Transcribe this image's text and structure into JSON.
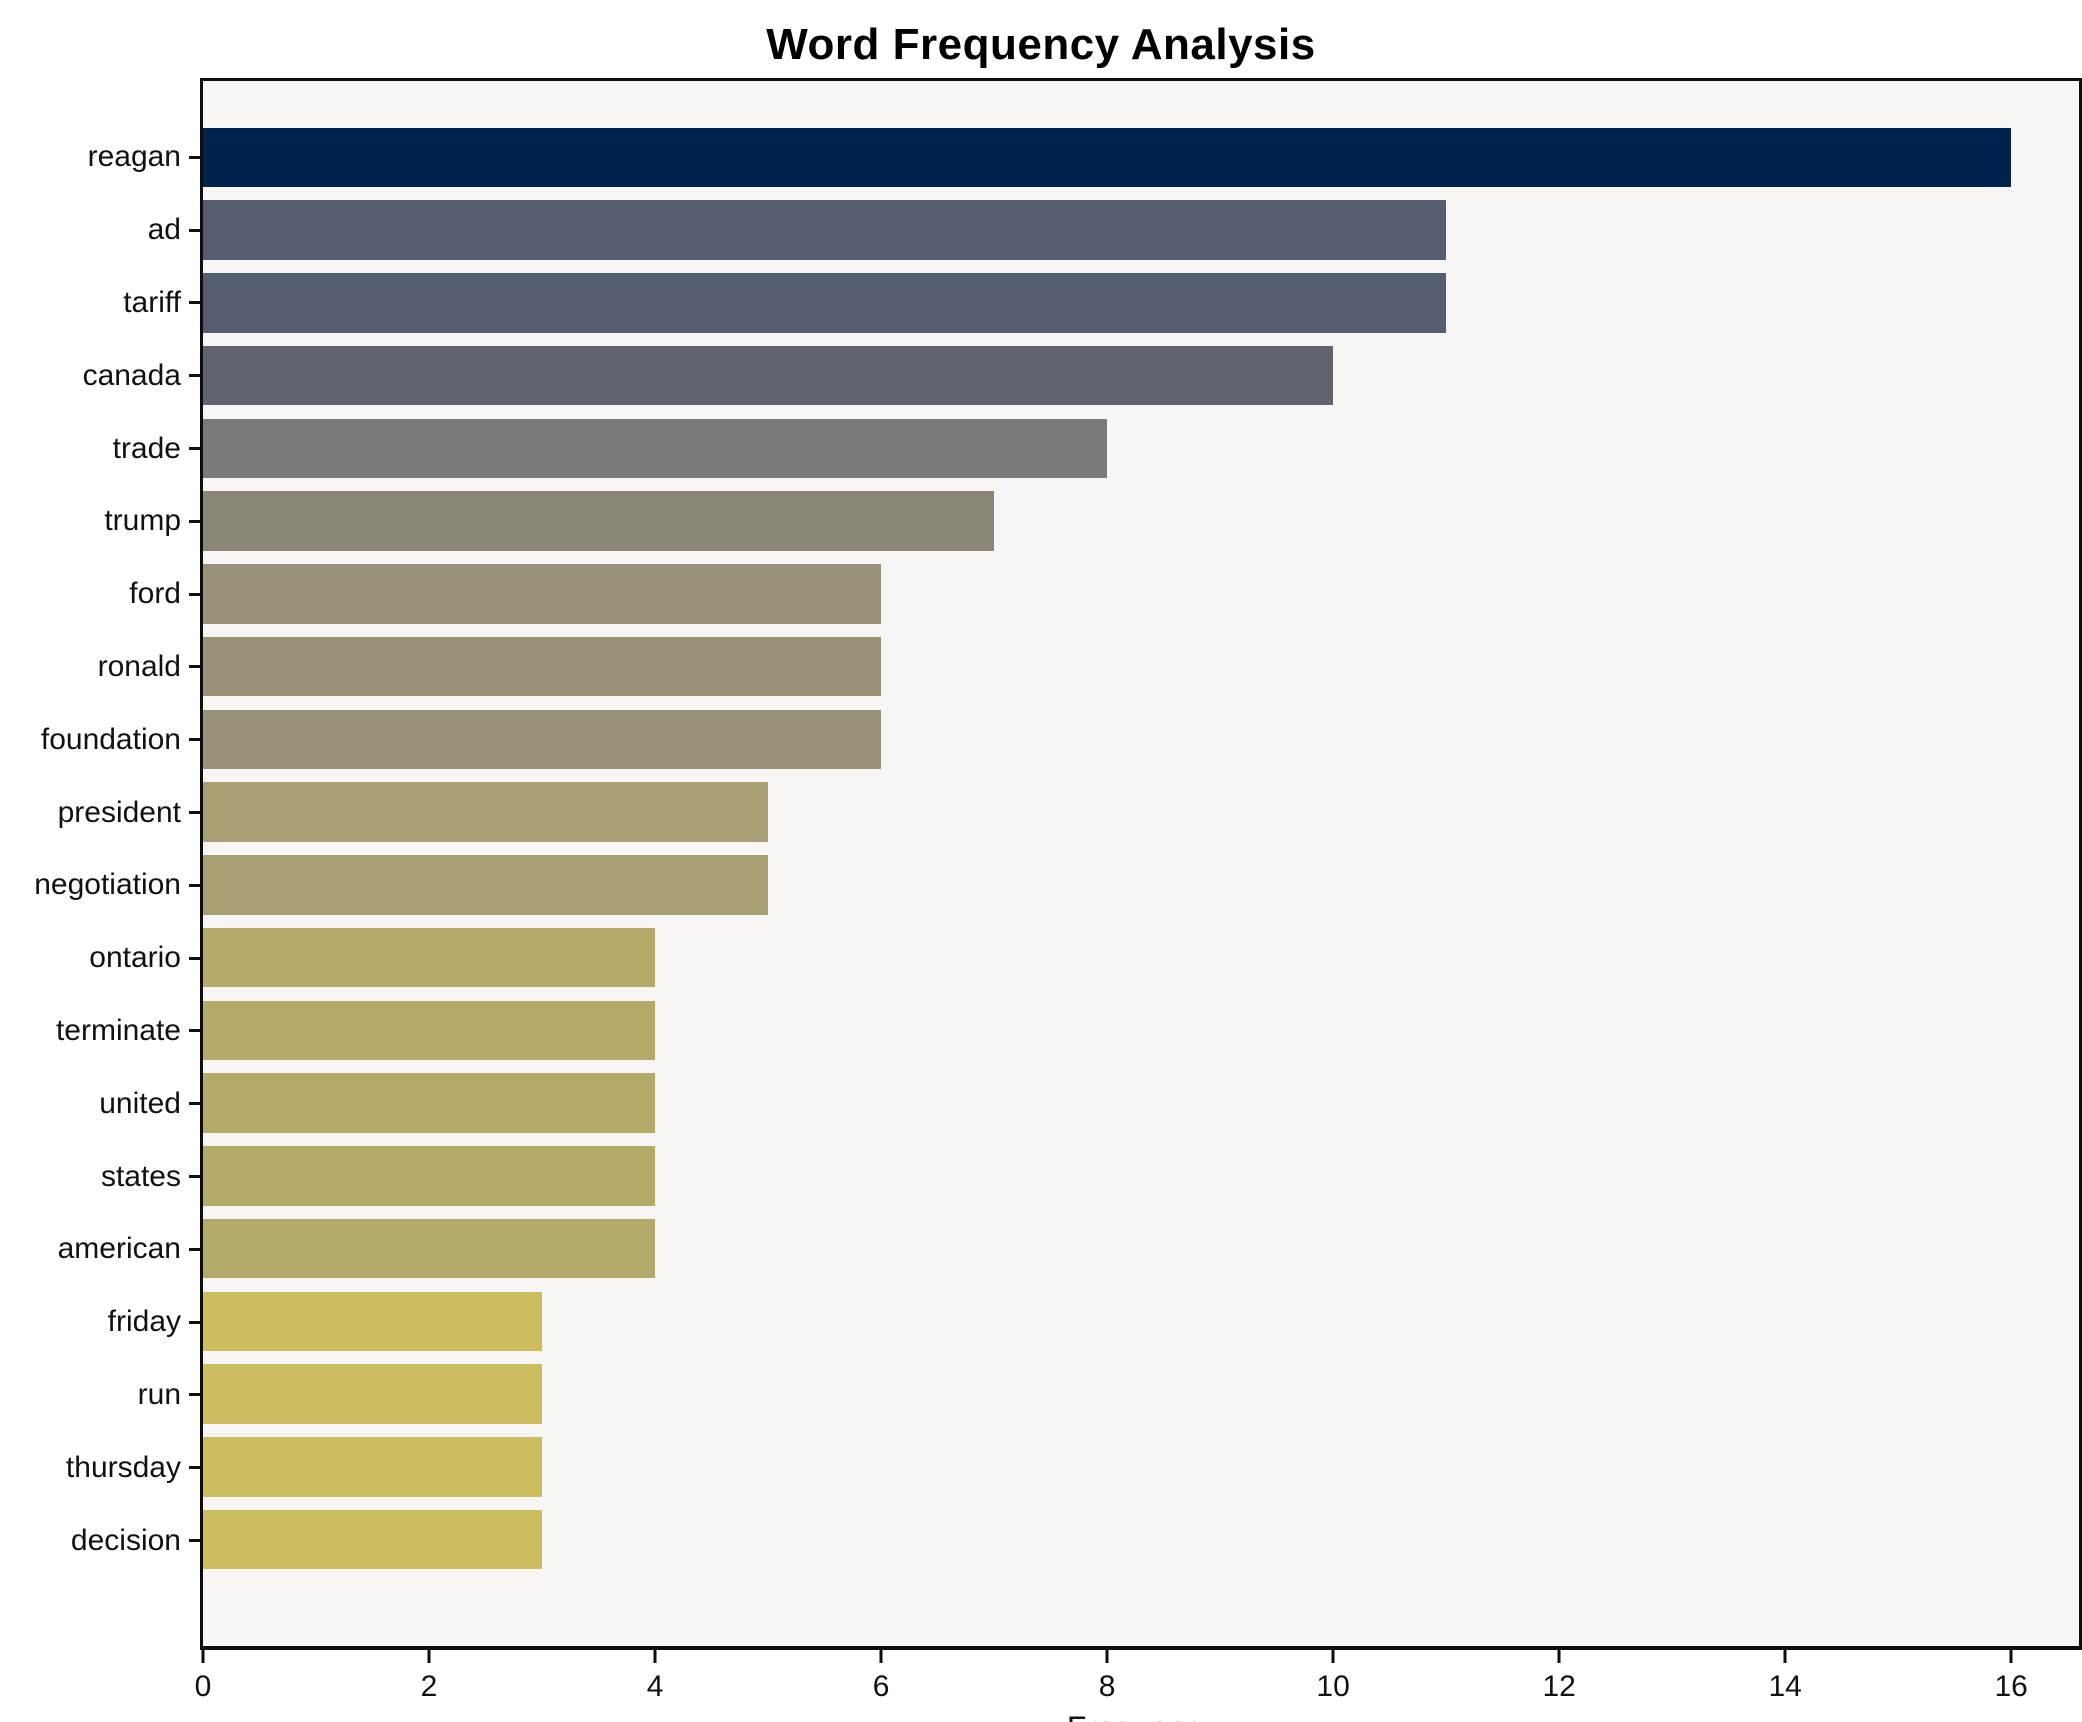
{
  "chart_data": {
    "type": "bar",
    "orientation": "horizontal",
    "title": "Word Frequency Analysis",
    "xlabel": "Frequency",
    "ylabel": "",
    "xlim": [
      0,
      16.6
    ],
    "x_tick_values": [
      0,
      2,
      4,
      6,
      8,
      10,
      12,
      14,
      16
    ],
    "grid": false,
    "legend": null,
    "plot_background": "#f7f6f4",
    "figure_background": "#ffffff",
    "spine_color": "#0d0d0d",
    "categories": [
      "reagan",
      "ad",
      "tariff",
      "canada",
      "trade",
      "trump",
      "ford",
      "ronald",
      "foundation",
      "president",
      "negotiation",
      "ontario",
      "terminate",
      "united",
      "states",
      "american",
      "friday",
      "run",
      "thursday",
      "decision"
    ],
    "values": [
      16,
      11,
      11,
      10,
      8,
      7,
      6,
      6,
      6,
      5,
      5,
      4,
      4,
      4,
      4,
      4,
      3,
      3,
      3,
      3
    ],
    "bar_colors": [
      "#00234e",
      "#555d71",
      "#555d71",
      "#60646f",
      "#7b7a77",
      "#8b8778",
      "#999278",
      "#999278",
      "#999278",
      "#a89f72",
      "#a89f72",
      "#b5aa67",
      "#b5aa67",
      "#b5aa67",
      "#b5aa67",
      "#b3a96a",
      "#ccbd5e",
      "#ccbd5e",
      "#ccbd5e",
      "#ccbd5e"
    ]
  }
}
